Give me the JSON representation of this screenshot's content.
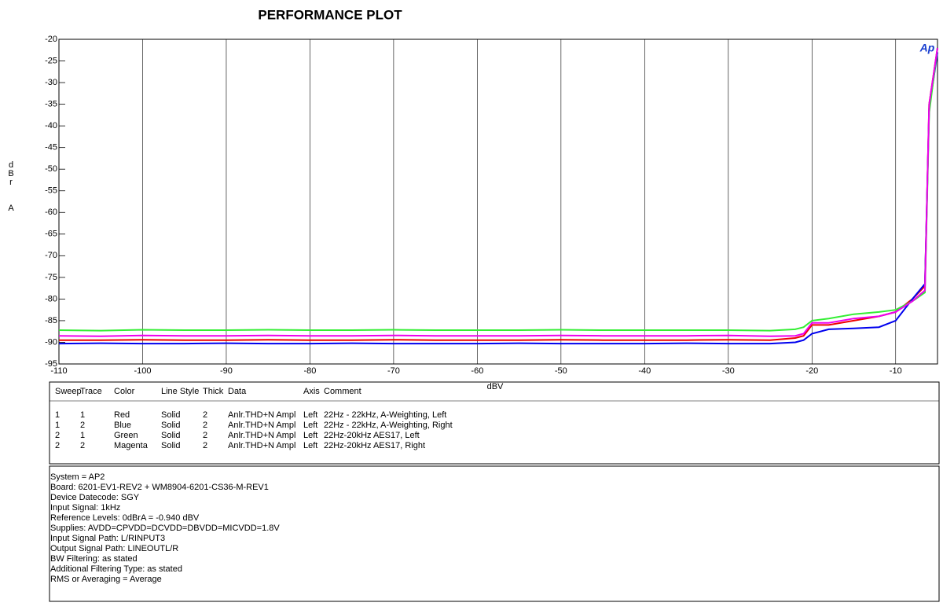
{
  "chart_data": {
    "type": "line",
    "title": "PERFORMANCE PLOT",
    "x_label": "dBV",
    "y_label": "dBrA",
    "logo": "Ap",
    "x": [
      -110,
      -105,
      -100,
      -95,
      -90,
      -85,
      -80,
      -75,
      -70,
      -65,
      -60,
      -55,
      -50,
      -45,
      -40,
      -35,
      -30,
      -25,
      -22,
      -21,
      -20,
      -18,
      -15,
      -12,
      -10,
      -8,
      -6.5,
      -6,
      -5
    ],
    "series": [
      {
        "name": "Red",
        "color": "#ee0000",
        "values": [
          -89.5,
          -89.5,
          -89.4,
          -89.5,
          -89.5,
          -89.4,
          -89.5,
          -89.5,
          -89.4,
          -89.5,
          -89.5,
          -89.5,
          -89.4,
          -89.5,
          -89.5,
          -89.5,
          -89.4,
          -89.5,
          -89,
          -88.5,
          -86,
          -86,
          -85,
          -84,
          -83,
          -80,
          -77,
          -35,
          -22
        ]
      },
      {
        "name": "Blue",
        "color": "#0000ee",
        "values": [
          -90.3,
          -90.2,
          -90.3,
          -90.3,
          -90.2,
          -90.3,
          -90.3,
          -90.2,
          -90.3,
          -90.3,
          -90.3,
          -90.2,
          -90.3,
          -90.3,
          -90.3,
          -90.2,
          -90.3,
          -90.3,
          -90,
          -89.5,
          -88,
          -87,
          -86.8,
          -86.5,
          -85,
          -80,
          -76.5,
          -36,
          -23
        ]
      },
      {
        "name": "Green",
        "color": "#33ee33",
        "values": [
          -87.2,
          -87.3,
          -87.1,
          -87.2,
          -87.2,
          -87.1,
          -87.2,
          -87.2,
          -87.1,
          -87.2,
          -87.2,
          -87.2,
          -87.1,
          -87.2,
          -87.2,
          -87.2,
          -87.2,
          -87.3,
          -87,
          -86.5,
          -85,
          -84.5,
          -83.5,
          -83,
          -82.5,
          -80.5,
          -78.5,
          -37,
          -22
        ]
      },
      {
        "name": "Magenta",
        "color": "#ee00ee",
        "values": [
          -88.5,
          -88.6,
          -88.4,
          -88.5,
          -88.5,
          -88.4,
          -88.5,
          -88.5,
          -88.4,
          -88.5,
          -88.5,
          -88.5,
          -88.4,
          -88.5,
          -88.5,
          -88.5,
          -88.4,
          -88.6,
          -88.5,
          -88,
          -85.5,
          -85.5,
          -84.5,
          -84,
          -83,
          -80.5,
          -78,
          -35,
          -22
        ]
      }
    ],
    "xlim": [
      -110,
      -5
    ],
    "xticks": [
      -110,
      -100,
      -90,
      -80,
      -70,
      -60,
      -50,
      -40,
      -30,
      -20,
      -10
    ],
    "ylim": [
      -95,
      -20
    ],
    "yticks": [
      -20,
      -25,
      -30,
      -35,
      -40,
      -45,
      -50,
      -55,
      -60,
      -65,
      -70,
      -75,
      -80,
      -85,
      -90,
      -95
    ],
    "grid": "vertical"
  },
  "legend_table": {
    "columns": [
      "Sweep",
      "Trace",
      "Color",
      "Line Style",
      "Thick",
      "Data",
      "Axis",
      "Comment"
    ],
    "rows": [
      [
        "1",
        "1",
        "Red",
        "Solid",
        "2",
        "Anlr.THD+N Ampl",
        "Left",
        "22Hz - 22kHz, A-Weighting, Left"
      ],
      [
        "1",
        "2",
        "Blue",
        "Solid",
        "2",
        "Anlr.THD+N Ampl",
        "Left",
        "22Hz - 22kHz, A-Weighting, Right"
      ],
      [
        "2",
        "1",
        "Green",
        "Solid",
        "2",
        "Anlr.THD+N Ampl",
        "Left",
        "22Hz-20kHz AES17, Left"
      ],
      [
        "2",
        "2",
        "Magenta",
        "Solid",
        "2",
        "Anlr.THD+N Ampl",
        "Left",
        "22Hz-20kHz AES17, Right"
      ]
    ]
  },
  "notes": [
    "System = AP2",
    "Board: 6201-EV1-REV2 + WM8904-6201-CS36-M-REV1",
    "Device Datecode: SGY",
    "Input Signal: 1kHz",
    "Reference Levels: 0dBrA = -0.940 dBV",
    "Supplies: AVDD=CPVDD=DCVDD=DBVDD=MICVDD=1.8V",
    "Input Signal Path: L/RINPUT3",
    "Output Signal Path: LINEOUTL/R",
    "BW Filtering: as stated",
    "Additional Filtering Type: as stated",
    "RMS or Averaging = Average"
  ]
}
